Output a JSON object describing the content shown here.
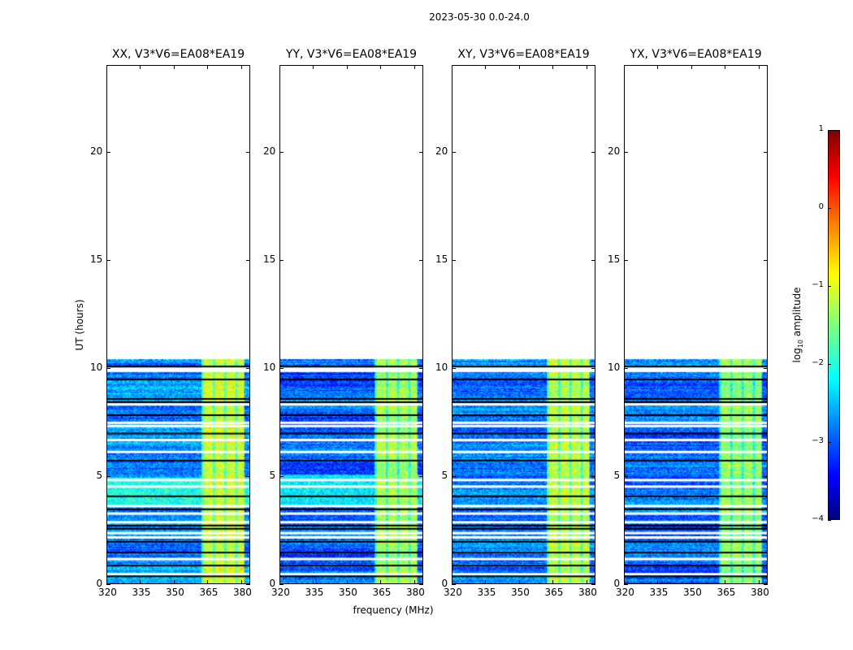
{
  "chart_data": {
    "type": "heatmap",
    "title": "2023-05-30 0.0-24.0",
    "xlabel": "frequency (MHz)",
    "ylabel": "UT (hours)",
    "xlim": [
      320,
      384
    ],
    "ylim": [
      0,
      24
    ],
    "xticks": [
      320,
      335,
      350,
      365,
      380
    ],
    "yticks": [
      0,
      5,
      10,
      15,
      20
    ],
    "colormap": "jet",
    "colorbar": {
      "label_main": "log",
      "label_sub": "10",
      "label_tail": " amplitude",
      "range": [
        -4,
        1
      ],
      "ticks": [
        "1",
        "0",
        "−1",
        "−2",
        "−3",
        "−4"
      ],
      "tick_values": [
        1,
        0,
        -1,
        -2,
        -3,
        -4
      ]
    },
    "data_time_range_hours": [
      0,
      10.4
    ],
    "bright_band_mhz": [
      362,
      381
    ],
    "white_gap_hours": [
      0.5,
      1.2,
      2.2,
      2.4,
      2.9,
      3.3,
      3.65,
      4.55,
      4.85,
      6.15,
      6.7,
      7.35,
      7.5,
      8.35,
      9.9,
      10.0
    ],
    "black_flag_hours": [
      0.4,
      0.9,
      1.5,
      2.0,
      2.6,
      2.75,
      3.5,
      4.1,
      5.75,
      7.0,
      7.85,
      8.45,
      8.6,
      9.5,
      10.1
    ],
    "panels": [
      {
        "title": "XX, V3*V6=EA08*EA19",
        "base": -2.7,
        "band": -1.1,
        "bright_hours": [
          3.7,
          5.0
        ],
        "bright_level": -2.0
      },
      {
        "title": "YY, V3*V6=EA08*EA19",
        "base": -2.9,
        "band": -1.3,
        "bright_hours": [
          3.7,
          5.1
        ],
        "bright_level": -2.2
      },
      {
        "title": "XY, V3*V6=EA08*EA19",
        "base": -2.75,
        "band": -1.2,
        "bright_hours": [
          0,
          0
        ],
        "bright_level": -2.7
      },
      {
        "title": "YX, V3*V6=EA08*EA19",
        "base": -2.85,
        "band": -1.4,
        "bright_hours": [
          0,
          0
        ],
        "bright_level": -2.8
      }
    ]
  }
}
